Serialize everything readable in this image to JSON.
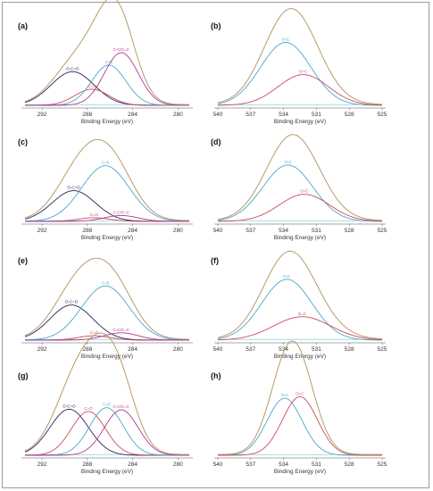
{
  "colors": {
    "envelope": "#b89a6a",
    "blue": "#4aa7c9",
    "red": "#cc4a5e",
    "purple": "#2b2255",
    "magenta": "#b03a8e",
    "baseline": "#6ac7d2",
    "axis": "#555555"
  },
  "chart_data": [
    {
      "panel": "(a)",
      "type": "line",
      "xlabel": "Binding Energy (eV)",
      "xlim": [
        293.5,
        279
      ],
      "reverse_x": true,
      "xticks": [
        292,
        288,
        284,
        280
      ],
      "grid": false,
      "peaks": [
        {
          "label": "O-C=O",
          "center": 289.3,
          "height": 0.46,
          "width": 1.9,
          "color": "#2b2255"
        },
        {
          "label": "C=O",
          "center": 287.6,
          "height": 0.22,
          "width": 1.5,
          "color": "#cc4a5e"
        },
        {
          "label": "C-O",
          "center": 286.1,
          "height": 0.55,
          "width": 1.5,
          "color": "#4aa7c9"
        },
        {
          "label": "C-C/C=C",
          "center": 285.0,
          "height": 0.72,
          "width": 1.5,
          "color": "#b03a8e"
        }
      ]
    },
    {
      "panel": "(b)",
      "type": "line",
      "xlabel": "Binding Energy (eV)",
      "xlim": [
        540,
        525
      ],
      "reverse_x": true,
      "xticks": [
        540,
        537,
        534,
        531,
        528,
        525
      ],
      "grid": false,
      "peaks": [
        {
          "label": "O-C",
          "center": 533.8,
          "height": 0.86,
          "width": 2.3,
          "color": "#4aa7c9"
        },
        {
          "label": "O=C",
          "center": 532.2,
          "height": 0.42,
          "width": 2.3,
          "color": "#cc4a5e"
        }
      ]
    },
    {
      "panel": "(c)",
      "type": "line",
      "xlabel": "Binding Energy (eV)",
      "xlim": [
        293.5,
        279
      ],
      "reverse_x": true,
      "xticks": [
        292,
        288,
        284,
        280
      ],
      "grid": false,
      "peaks": [
        {
          "label": "O-C=O",
          "center": 289.2,
          "height": 0.42,
          "width": 1.9,
          "color": "#2b2255"
        },
        {
          "label": "C-O",
          "center": 286.4,
          "height": 0.76,
          "width": 2.1,
          "color": "#4aa7c9"
        },
        {
          "label": "C=O",
          "center": 287.4,
          "height": 0.05,
          "width": 1.4,
          "color": "#cc4a5e"
        },
        {
          "label": "C-C/C=C",
          "center": 285.0,
          "height": 0.08,
          "width": 1.5,
          "color": "#b03a8e"
        }
      ]
    },
    {
      "panel": "(d)",
      "type": "line",
      "xlabel": "Binding Energy (eV)",
      "xlim": [
        540,
        525
      ],
      "reverse_x": true,
      "xticks": [
        540,
        537,
        534,
        531,
        528,
        525
      ],
      "grid": false,
      "peaks": [
        {
          "label": "O-C",
          "center": 533.6,
          "height": 0.77,
          "width": 2.3,
          "color": "#4aa7c9"
        },
        {
          "label": "O=C",
          "center": 532.1,
          "height": 0.37,
          "width": 2.3,
          "color": "#cc4a5e"
        }
      ]
    },
    {
      "panel": "(e)",
      "type": "line",
      "xlabel": "Binding Energy (eV)",
      "xlim": [
        293.5,
        279
      ],
      "reverse_x": true,
      "xticks": [
        292,
        288,
        284,
        280
      ],
      "grid": false,
      "peaks": [
        {
          "label": "O-C=O",
          "center": 289.4,
          "height": 0.48,
          "width": 1.9,
          "color": "#2b2255"
        },
        {
          "label": "C-O",
          "center": 286.4,
          "height": 0.74,
          "width": 2.1,
          "color": "#4aa7c9"
        },
        {
          "label": "C=O",
          "center": 287.4,
          "height": 0.06,
          "width": 1.4,
          "color": "#cc4a5e"
        },
        {
          "label": "C-C/C=C",
          "center": 285.0,
          "height": 0.1,
          "width": 1.5,
          "color": "#b03a8e"
        }
      ]
    },
    {
      "panel": "(f)",
      "type": "line",
      "xlabel": "Binding Energy (eV)",
      "xlim": [
        540,
        525
      ],
      "reverse_x": true,
      "xticks": [
        540,
        537,
        534,
        531,
        528,
        525
      ],
      "grid": false,
      "peaks": [
        {
          "label": "O-C",
          "center": 533.7,
          "height": 0.83,
          "width": 2.3,
          "color": "#4aa7c9"
        },
        {
          "label": "O=C",
          "center": 532.3,
          "height": 0.32,
          "width": 2.6,
          "color": "#cc4a5e"
        }
      ]
    },
    {
      "panel": "(g)",
      "type": "line",
      "xlabel": "Binding Energy (eV)",
      "xlim": [
        293.5,
        279
      ],
      "reverse_x": true,
      "xticks": [
        292,
        288,
        284,
        280
      ],
      "grid": false,
      "peaks": [
        {
          "label": "O-C=O",
          "center": 289.6,
          "height": 0.63,
          "width": 1.7,
          "color": "#2b2255"
        },
        {
          "label": "C=O",
          "center": 287.9,
          "height": 0.6,
          "width": 1.5,
          "color": "#cc4a5e"
        },
        {
          "label": "C-O",
          "center": 286.3,
          "height": 0.65,
          "width": 1.5,
          "color": "#4aa7c9"
        },
        {
          "label": "C-C/C=C",
          "center": 285.0,
          "height": 0.62,
          "width": 1.5,
          "color": "#b03a8e"
        }
      ]
    },
    {
      "panel": "(h)",
      "type": "line",
      "xlabel": "Binding Energy (eV)",
      "xlim": [
        540,
        525
      ],
      "reverse_x": true,
      "xticks": [
        540,
        537,
        534,
        531,
        528,
        525
      ],
      "grid": false,
      "peaks": [
        {
          "label": "O-C",
          "center": 533.9,
          "height": 0.78,
          "width": 1.6,
          "color": "#4aa7c9"
        },
        {
          "label": "O=C",
          "center": 532.5,
          "height": 0.8,
          "width": 1.6,
          "color": "#cc4a5e"
        }
      ]
    }
  ]
}
